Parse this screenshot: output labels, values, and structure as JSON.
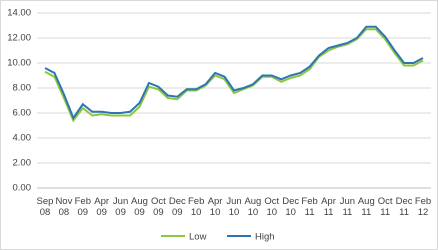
{
  "chart_data": {
    "type": "line",
    "categories": [
      "Sep 08",
      null,
      "Nov 08",
      null,
      "Feb 09",
      null,
      "Apr 09",
      null,
      "Jun 09",
      null,
      "Aug 09",
      null,
      "Oct 09",
      null,
      "Dec 09",
      null,
      "Feb 10",
      null,
      "Apr 10",
      null,
      "Jun 10",
      null,
      "Aug 10",
      null,
      "Oct 10",
      null,
      "Dec 10",
      null,
      "Feb 11",
      null,
      "Apr 11",
      null,
      "Jun 11",
      null,
      "Aug 11",
      null,
      "Oct 11",
      null,
      "Dec 11",
      null,
      "Feb 12"
    ],
    "series": [
      {
        "name": "Low",
        "color": "#8cc63f",
        "values": [
          9.3,
          8.9,
          7.2,
          5.4,
          6.4,
          5.8,
          5.9,
          5.8,
          5.8,
          5.8,
          6.5,
          8.1,
          7.9,
          7.2,
          7.1,
          7.8,
          7.8,
          8.2,
          9.0,
          8.7,
          7.6,
          7.9,
          8.2,
          8.9,
          8.9,
          8.5,
          8.8,
          9.0,
          9.5,
          10.5,
          11.0,
          11.3,
          11.5,
          11.9,
          12.7,
          12.7,
          11.9,
          10.8,
          9.8,
          9.8,
          10.2
        ]
      },
      {
        "name": "High",
        "color": "#2e75b6",
        "values": [
          9.6,
          9.2,
          7.5,
          5.6,
          6.7,
          6.1,
          6.1,
          6.0,
          6.0,
          6.1,
          6.8,
          8.4,
          8.1,
          7.4,
          7.3,
          7.9,
          7.9,
          8.3,
          9.2,
          8.9,
          7.8,
          8.0,
          8.3,
          9.0,
          9.0,
          8.7,
          9.0,
          9.2,
          9.7,
          10.6,
          11.2,
          11.4,
          11.6,
          12.0,
          12.9,
          12.9,
          12.1,
          11.0,
          10.0,
          10.0,
          10.4
        ]
      }
    ],
    "ylim": [
      0,
      14
    ],
    "yticks": [
      {
        "value": 0,
        "label": "0.00"
      },
      {
        "value": 2,
        "label": "2.00"
      },
      {
        "value": 4,
        "label": "4.00"
      },
      {
        "value": 6,
        "label": "6.00"
      },
      {
        "value": 8,
        "label": "8.00"
      },
      {
        "value": 10,
        "label": "10.00"
      },
      {
        "value": 12,
        "label": "12.00"
      },
      {
        "value": 14,
        "label": "14.00"
      }
    ],
    "grid": true,
    "legend": "bottom"
  }
}
